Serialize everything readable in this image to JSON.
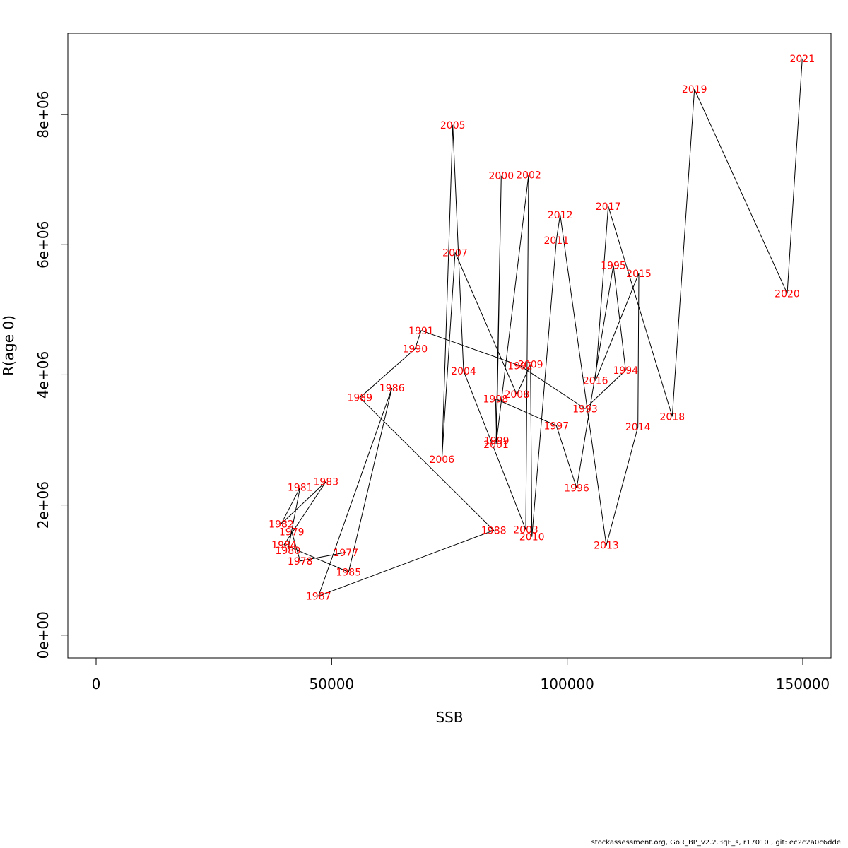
{
  "chart_data": {
    "type": "scatter",
    "title": "",
    "xlabel": "SSB",
    "ylabel": "R(age 0)",
    "xlim": [
      -6000,
      156000
    ],
    "ylim": [
      -350000,
      9250000
    ],
    "x_ticks": [
      {
        "value": 0,
        "label": "0"
      },
      {
        "value": 50000,
        "label": "50000"
      },
      {
        "value": 100000,
        "label": "100000"
      },
      {
        "value": 150000,
        "label": "150000"
      }
    ],
    "y_ticks": [
      {
        "value": 0,
        "label": "0e+00"
      },
      {
        "value": 2000000,
        "label": "2e+06"
      },
      {
        "value": 4000000,
        "label": "4e+06"
      },
      {
        "value": 6000000,
        "label": "6e+06"
      },
      {
        "value": 8000000,
        "label": "8e+06"
      }
    ],
    "connect_points": true,
    "line_color": "#000000",
    "label_color": "#ff0000",
    "points": [
      {
        "year": "1977",
        "ssb": 53000,
        "r": 1270000
      },
      {
        "year": "1978",
        "ssb": 43300,
        "r": 1140000
      },
      {
        "year": "1979",
        "ssb": 41500,
        "r": 1590000
      },
      {
        "year": "1980",
        "ssb": 40700,
        "r": 1300000
      },
      {
        "year": "1981",
        "ssb": 43300,
        "r": 2270000
      },
      {
        "year": "1982",
        "ssb": 39300,
        "r": 1710000
      },
      {
        "year": "1983",
        "ssb": 48800,
        "r": 2360000
      },
      {
        "year": "1984",
        "ssb": 39900,
        "r": 1390000
      },
      {
        "year": "1985",
        "ssb": 53600,
        "r": 970000
      },
      {
        "year": "1986",
        "ssb": 62800,
        "r": 3800000
      },
      {
        "year": "1987",
        "ssb": 47200,
        "r": 600000
      },
      {
        "year": "1988",
        "ssb": 84400,
        "r": 1610000
      },
      {
        "year": "1989",
        "ssb": 56000,
        "r": 3650000
      },
      {
        "year": "1990",
        "ssb": 67700,
        "r": 4400000
      },
      {
        "year": "1991",
        "ssb": 69000,
        "r": 4680000
      },
      {
        "year": "1992",
        "ssb": 90000,
        "r": 4140000
      },
      {
        "year": "1993",
        "ssb": 103800,
        "r": 3480000
      },
      {
        "year": "1994",
        "ssb": 112400,
        "r": 4070000
      },
      {
        "year": "1995",
        "ssb": 109800,
        "r": 5680000
      },
      {
        "year": "1996",
        "ssb": 102000,
        "r": 2260000
      },
      {
        "year": "1997",
        "ssb": 97700,
        "r": 3220000
      },
      {
        "year": "1998",
        "ssb": 84800,
        "r": 3630000
      },
      {
        "year": "1999",
        "ssb": 85000,
        "r": 2990000
      },
      {
        "year": "2000",
        "ssb": 86000,
        "r": 7060000
      },
      {
        "year": "2001",
        "ssb": 84900,
        "r": 2930000
      },
      {
        "year": "2002",
        "ssb": 91800,
        "r": 7070000
      },
      {
        "year": "2003",
        "ssb": 91200,
        "r": 1620000
      },
      {
        "year": "2004",
        "ssb": 78000,
        "r": 4060000
      },
      {
        "year": "2005",
        "ssb": 75700,
        "r": 7840000
      },
      {
        "year": "2006",
        "ssb": 73400,
        "r": 2700000
      },
      {
        "year": "2007",
        "ssb": 76200,
        "r": 5880000
      },
      {
        "year": "2008",
        "ssb": 89300,
        "r": 3700000
      },
      {
        "year": "2009",
        "ssb": 92200,
        "r": 4160000
      },
      {
        "year": "2010",
        "ssb": 92500,
        "r": 1510000
      },
      {
        "year": "2011",
        "ssb": 97700,
        "r": 6070000
      },
      {
        "year": "2012",
        "ssb": 98500,
        "r": 6460000
      },
      {
        "year": "2013",
        "ssb": 108300,
        "r": 1380000
      },
      {
        "year": "2014",
        "ssb": 115000,
        "r": 3200000
      },
      {
        "year": "2015",
        "ssb": 115200,
        "r": 5560000
      },
      {
        "year": "2016",
        "ssb": 106000,
        "r": 3910000
      },
      {
        "year": "2017",
        "ssb": 108700,
        "r": 6590000
      },
      {
        "year": "2018",
        "ssb": 122300,
        "r": 3360000
      },
      {
        "year": "2019",
        "ssb": 127000,
        "r": 8390000
      },
      {
        "year": "2020",
        "ssb": 146700,
        "r": 5250000
      },
      {
        "year": "2021",
        "ssb": 149900,
        "r": 8860000
      }
    ]
  },
  "footer": {
    "text": "stockassessment.org, GoR_BP_v2.2.3qF_s, r17010 , git: ec2c2a0c6dde"
  }
}
